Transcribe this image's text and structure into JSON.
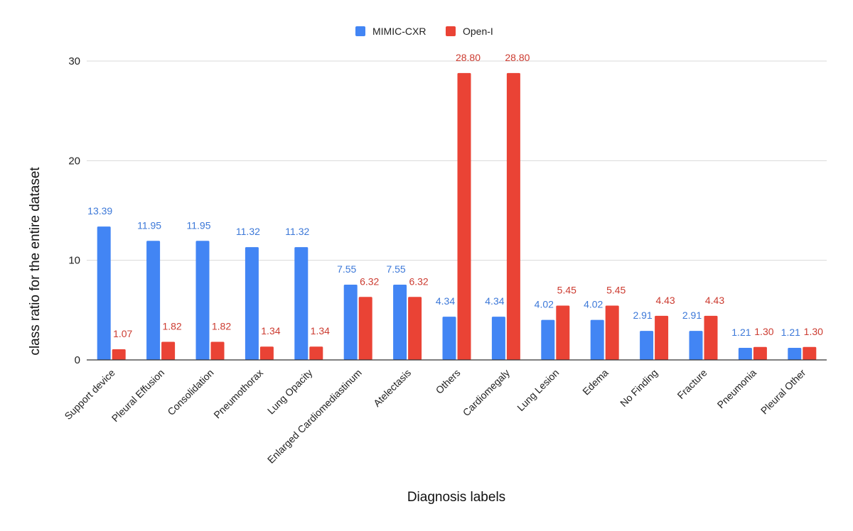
{
  "chart_data": {
    "type": "bar",
    "title": "",
    "xlabel": "Diagnosis labels",
    "ylabel": "class ratio for the entire dataset",
    "ylim": [
      0,
      30
    ],
    "yticks": [
      0,
      10,
      20,
      30
    ],
    "grid": true,
    "legend_position": "top-center",
    "categories": [
      "Support device",
      "Pleural Effusion",
      "Consolidation",
      "Pneumothorax",
      "Lung Opacity",
      "Enlarged Cardiomediastinum",
      "Atelectasis",
      "Others",
      "Cardiomegaly",
      "Lung Lesion",
      "Edema",
      "No Finding",
      "Fracture",
      "Pneumonia",
      "Pleural Other"
    ],
    "series": [
      {
        "name": "MIMIC-CXR",
        "color": "#4285f4",
        "label_color": "#3c78d8",
        "values": [
          13.39,
          11.95,
          11.95,
          11.32,
          11.32,
          7.55,
          7.55,
          4.34,
          4.34,
          4.02,
          4.02,
          2.91,
          2.91,
          1.21,
          1.21
        ],
        "labels": [
          "13.39",
          "11.95",
          "11.95",
          "11.32",
          "11.32",
          "7.55",
          "7.55",
          "4.34",
          "4.34",
          "4.02",
          "4.02",
          "2.91",
          "2.91",
          "1.21",
          "1.21"
        ]
      },
      {
        "name": "Open-I",
        "color": "#ea4335",
        "label_color": "#cc3b30",
        "values": [
          1.07,
          1.82,
          1.82,
          1.34,
          1.34,
          6.32,
          6.32,
          28.8,
          28.8,
          5.45,
          5.45,
          4.43,
          4.43,
          1.3,
          1.3
        ],
        "labels": [
          "1.07",
          "1.82",
          "1.82",
          "1.34",
          "1.34",
          "6.32",
          "6.32",
          "28.80",
          "28.80",
          "5.45",
          "5.45",
          "4.43",
          "4.43",
          "1.30",
          "1.30"
        ]
      }
    ]
  }
}
